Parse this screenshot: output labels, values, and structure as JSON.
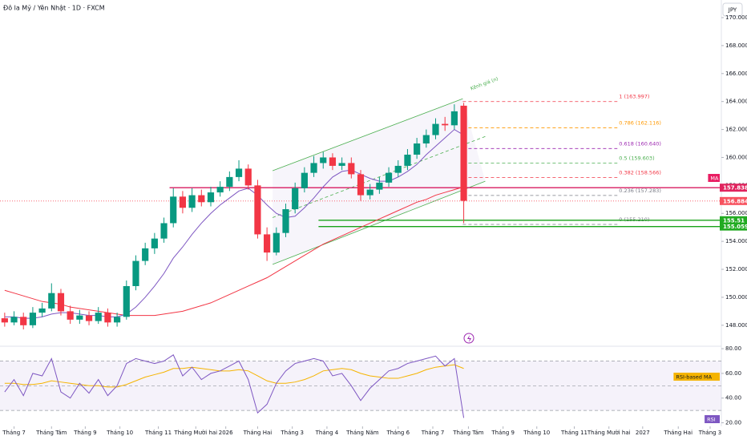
{
  "chart_data": {
    "type": "candlestick",
    "title": "Đô la Mỹ / Yên Nhật · 1D · FXCM",
    "currency": "JPY",
    "xlim": [
      -0.5,
      76.5
    ],
    "xticks": [
      {
        "value": 1.0,
        "label": "Tháng 7"
      },
      {
        "value": 5.0,
        "label": "Tháng Tám"
      },
      {
        "value": 8.6,
        "label": "Tháng 9"
      },
      {
        "value": 12.3,
        "label": "Tháng 10"
      },
      {
        "value": 16.4,
        "label": "Tháng 11"
      },
      {
        "value": 20.4,
        "label": "Tháng Mười hai"
      },
      {
        "value": 23.6,
        "label": "2026"
      },
      {
        "value": 27.0,
        "label": "Tháng Hai"
      },
      {
        "value": 30.7,
        "label": "Tháng 3"
      },
      {
        "value": 34.4,
        "label": "Tháng 4"
      },
      {
        "value": 38.2,
        "label": "Tháng Năm"
      },
      {
        "value": 42.0,
        "label": "Tháng 6"
      },
      {
        "value": 45.7,
        "label": "Tháng 7"
      },
      {
        "value": 49.5,
        "label": "Tháng Tám"
      },
      {
        "value": 53.2,
        "label": "Tháng 9"
      },
      {
        "value": 56.8,
        "label": "Tháng 10"
      },
      {
        "value": 60.8,
        "label": "Tháng 11"
      },
      {
        "value": 64.5,
        "label": "Tháng Mười hai"
      },
      {
        "value": 68.1,
        "label": "2027"
      },
      {
        "value": 71.9,
        "label": "Tháng Hai"
      },
      {
        "value": 75.3,
        "label": "Tháng 3"
      }
    ],
    "ylim": [
      146.5,
      171.26
    ],
    "yticks": [
      {
        "value": 148,
        "label": "148.000"
      },
      {
        "value": 150,
        "label": "150.000"
      },
      {
        "value": 152,
        "label": "152.000"
      },
      {
        "value": 154,
        "label": "154.000"
      },
      {
        "value": 156,
        "label": "156.000"
      },
      {
        "value": 158,
        "label": "158.000"
      },
      {
        "value": 160,
        "label": "160.000"
      },
      {
        "value": 162,
        "label": "162.000"
      },
      {
        "value": 164,
        "label": "164.000"
      },
      {
        "value": 166,
        "label": "166.000"
      },
      {
        "value": 168,
        "label": "168.000"
      },
      {
        "value": 170,
        "label": "170.000"
      }
    ],
    "up_color": "#089981",
    "down_color": "#f23645",
    "open": [
      148.5,
      148.2,
      148.6,
      148.0,
      148.9,
      149.2,
      150.3,
      149.0,
      148.4,
      148.7,
      148.3,
      148.9,
      148.2,
      148.6,
      150.8,
      152.6,
      153.5,
      154.2,
      155.3,
      157.2,
      156.4,
      157.3,
      156.8,
      157.5,
      157.9,
      158.6,
      159.2,
      158.0,
      154.5,
      153.2,
      154.6,
      156.3,
      157.8,
      158.9,
      159.6,
      160.0,
      159.4,
      159.6,
      158.8,
      157.3,
      157.7,
      158.2,
      158.9,
      159.4,
      160.2,
      161.0,
      161.6,
      162.4,
      162.3,
      163.7
    ],
    "high": [
      148.9,
      149.0,
      148.9,
      149.3,
      149.6,
      151.0,
      150.6,
      149.4,
      149.1,
      149.0,
      149.3,
      149.2,
      148.9,
      151.2,
      153.0,
      153.9,
      154.6,
      155.7,
      157.8,
      157.6,
      157.8,
      157.7,
      157.9,
      158.3,
      159.0,
      159.8,
      159.5,
      158.4,
      155.0,
      155.0,
      156.7,
      158.2,
      159.3,
      160.1,
      160.4,
      160.3,
      160.0,
      160.0,
      159.1,
      158.1,
      158.6,
      159.3,
      159.8,
      160.6,
      161.4,
      162.0,
      162.8,
      162.9,
      163.8,
      163.9
    ],
    "low": [
      147.9,
      148.0,
      147.7,
      147.8,
      148.6,
      149.0,
      148.7,
      148.1,
      148.1,
      148.0,
      148.1,
      147.9,
      147.9,
      148.4,
      150.5,
      152.3,
      153.1,
      153.9,
      155.0,
      156.0,
      156.1,
      156.5,
      156.5,
      157.2,
      157.6,
      158.3,
      157.7,
      154.2,
      152.6,
      153.0,
      154.3,
      156.0,
      157.5,
      158.6,
      159.2,
      159.1,
      159.1,
      158.5,
      156.9,
      157.0,
      157.4,
      157.9,
      158.6,
      159.1,
      159.9,
      160.7,
      161.3,
      161.9,
      162.0,
      155.3
    ],
    "close": [
      148.2,
      148.6,
      148.0,
      148.9,
      149.2,
      150.3,
      149.0,
      148.4,
      148.7,
      148.3,
      148.9,
      148.2,
      148.6,
      150.8,
      152.6,
      153.5,
      154.2,
      155.3,
      157.2,
      156.4,
      157.3,
      156.8,
      157.5,
      157.9,
      158.6,
      159.2,
      158.0,
      154.5,
      153.2,
      154.6,
      156.3,
      157.8,
      158.9,
      159.6,
      160.0,
      159.4,
      159.6,
      158.8,
      157.3,
      157.7,
      158.2,
      158.9,
      159.4,
      160.2,
      161.0,
      161.6,
      162.4,
      162.3,
      163.3,
      156.9
    ],
    "ma": {
      "color": "#7e57c2",
      "values": [
        148.6,
        148.6,
        148.5,
        148.5,
        148.6,
        148.8,
        148.9,
        148.9,
        148.8,
        148.7,
        148.7,
        148.6,
        148.6,
        148.8,
        149.3,
        150.0,
        150.8,
        151.7,
        152.8,
        153.6,
        154.5,
        155.3,
        156.0,
        156.6,
        157.1,
        157.6,
        157.8,
        157.3,
        156.6,
        156.0,
        155.7,
        155.8,
        156.4,
        157.1,
        157.9,
        158.6,
        159.0,
        159.1,
        158.8,
        158.5,
        158.3,
        158.3,
        158.6,
        159.0,
        159.5,
        160.2,
        160.8,
        161.4,
        162.0,
        161.6
      ]
    },
    "ma_long": {
      "color": "#f23645",
      "values": [
        150.5,
        150.3,
        150.1,
        149.9,
        149.7,
        149.6,
        149.5,
        149.3,
        149.2,
        149.1,
        149.0,
        148.9,
        148.8,
        148.7,
        148.7,
        148.7,
        148.7,
        148.8,
        148.9,
        149.0,
        149.2,
        149.4,
        149.6,
        149.9,
        150.2,
        150.5,
        150.8,
        151.1,
        151.4,
        151.8,
        152.2,
        152.6,
        153.0,
        153.4,
        153.8,
        154.1,
        154.4,
        154.7,
        155.0,
        155.3,
        155.6,
        155.9,
        156.2,
        156.5,
        156.8,
        157.0,
        157.3,
        157.5,
        157.7,
        157.9
      ]
    },
    "channel": {
      "label": "Kênh giá (n)",
      "color": "#4caf50",
      "upper": {
        "x": [
          28.6,
          48.9
        ],
        "y": [
          159.05,
          164.2
        ]
      },
      "middle": {
        "x": [
          28.6,
          51.3
        ],
        "y": [
          155.7,
          161.5
        ]
      },
      "lower": {
        "x": [
          28.6,
          51.3
        ],
        "y": [
          152.35,
          158.3
        ]
      }
    },
    "fib": {
      "x": [
        48.9,
        65.4
      ],
      "levels": [
        {
          "label": "1 (163.997)",
          "value": 163.997,
          "color": "#f23645"
        },
        {
          "label": "0.786 (162.116)",
          "value": 162.116,
          "color": "#ff9800"
        },
        {
          "label": "0.618 (160.640)",
          "value": 160.64,
          "color": "#9c27b0"
        },
        {
          "label": "0.5 (159.603)",
          "value": 159.603,
          "color": "#4caf50"
        },
        {
          "label": "0.382 (158.566)",
          "value": 158.566,
          "color": "#f23645"
        },
        {
          "label": "0.236 (157.283)",
          "value": 157.283,
          "color": "#787b86"
        },
        {
          "label": "0 (155.210)",
          "value": 155.21,
          "color": "#787b86"
        }
      ]
    },
    "levels": [
      {
        "value": 157.838,
        "x_start": 17.6,
        "color": "#d81b60"
      },
      {
        "value": 155.51,
        "x_start": 33.5,
        "color": "#1aa31a"
      },
      {
        "value": 155.059,
        "x_start": 33.5,
        "color": "#1aa31a"
      }
    ],
    "price_tags": [
      {
        "value": 157.838,
        "color": "#e0245e"
      },
      {
        "value": 156.884,
        "color": "#f7525f"
      },
      {
        "value": 155.51,
        "color": "#22ab22"
      },
      {
        "value": 155.059,
        "color": "#22ab22"
      }
    ],
    "current_price": 156.884,
    "tags": [
      {
        "label": "MA",
        "color": "#e91e63"
      }
    ],
    "rsi": {
      "ylim": [
        17.1,
        82
      ],
      "yticks": [
        {
          "value": 20,
          "label": "20.00"
        },
        {
          "value": 40,
          "label": "40.00"
        },
        {
          "value": 60,
          "label": "60.00"
        },
        {
          "value": 80,
          "label": "80.00"
        }
      ],
      "levels": [
        70,
        50,
        30
      ],
      "color": "#7e57c2",
      "ma_color": "#f5b400",
      "values": [
        45,
        55,
        42,
        60,
        58,
        72,
        45,
        40,
        52,
        44,
        55,
        42,
        50,
        68,
        72,
        70,
        68,
        70,
        75,
        58,
        65,
        55,
        60,
        62,
        66,
        70,
        55,
        28,
        35,
        52,
        62,
        68,
        70,
        72,
        70,
        58,
        60,
        50,
        38,
        48,
        55,
        62,
        64,
        68,
        70,
        72,
        74,
        66,
        72,
        24
      ],
      "ma_values": [
        52,
        52,
        51,
        51,
        52,
        54,
        53,
        52,
        51,
        50,
        50,
        49,
        49,
        51,
        54,
        57,
        59,
        61,
        64,
        64,
        65,
        64,
        63,
        62,
        62,
        63,
        62,
        58,
        54,
        52,
        52,
        53,
        55,
        58,
        62,
        63,
        64,
        63,
        60,
        58,
        57,
        56,
        56,
        58,
        60,
        63,
        65,
        66,
        67,
        64
      ],
      "tags": [
        {
          "label": "RSI-based MA",
          "color": "#f5b400"
        },
        {
          "label": "RSI",
          "color": "#7e57c2"
        }
      ]
    }
  }
}
